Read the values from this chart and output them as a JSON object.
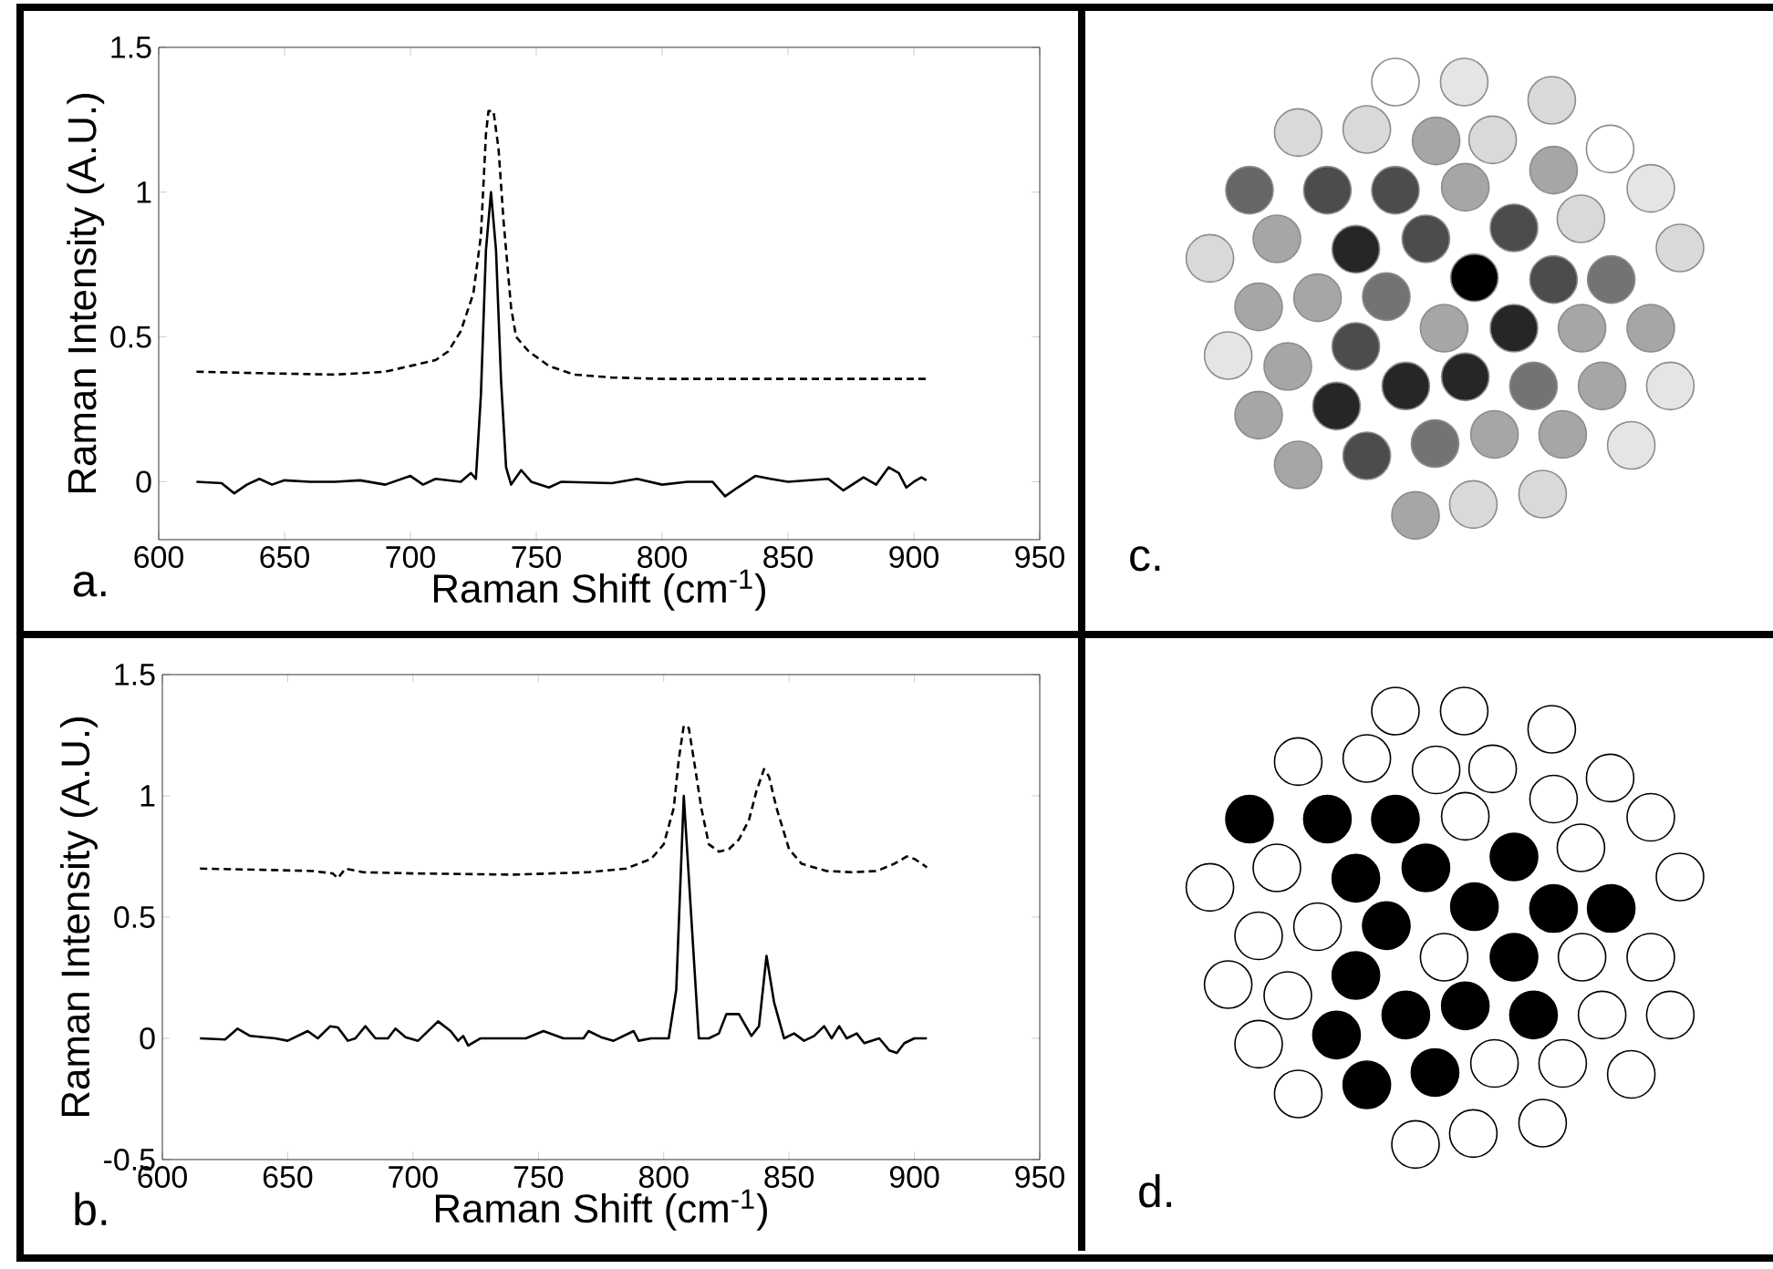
{
  "chart_data": [
    {
      "type": "line",
      "xlabel": "Raman Shift (cm$^{-1}$)",
      "ylabel": "Raman Intensity (A.U.)",
      "annotations": [
        "a."
      ],
      "xlim": [
        600,
        950
      ],
      "xticks": [
        600,
        650,
        700,
        750,
        800,
        850,
        900,
        950
      ],
      "ylim": [
        -0.2,
        1.5
      ],
      "yticks": [
        0,
        0.5,
        1,
        1.5
      ],
      "series": [
        {
          "color": "#000000",
          "line_style": "dashed",
          "x": [
            615,
            640,
            670,
            690,
            700,
            710,
            715,
            720,
            725,
            728,
            730,
            731,
            733,
            735,
            737,
            740,
            742,
            747,
            755,
            765,
            780,
            800,
            850,
            905
          ],
          "values": [
            0.38,
            0.375,
            0.37,
            0.38,
            0.4,
            0.42,
            0.45,
            0.52,
            0.65,
            0.85,
            1.2,
            1.28,
            1.28,
            1.15,
            0.9,
            0.6,
            0.5,
            0.45,
            0.4,
            0.37,
            0.36,
            0.355,
            0.355,
            0.355
          ]
        },
        {
          "color": "#000000",
          "line_style": "solid",
          "x": [
            615,
            625,
            630,
            635,
            640,
            645,
            650,
            660,
            670,
            680,
            690,
            700,
            705,
            710,
            720,
            724,
            726,
            728,
            730,
            732,
            734,
            736,
            738,
            740,
            744,
            748,
            755,
            760,
            780,
            790,
            800,
            810,
            820,
            825,
            830,
            837,
            843,
            850,
            866,
            872,
            880,
            885,
            890,
            894,
            897,
            900,
            903,
            905
          ],
          "values": [
            0,
            -0.005,
            -0.04,
            -0.01,
            0.01,
            -0.01,
            0.005,
            0,
            0,
            0.005,
            -0.01,
            0.02,
            -0.01,
            0.01,
            0,
            0.03,
            0.01,
            0.3,
            0.8,
            1.0,
            0.8,
            0.35,
            0.05,
            -0.01,
            0.04,
            0,
            -0.02,
            0,
            -0.005,
            0.01,
            -0.01,
            0,
            0,
            -0.05,
            -0.02,
            0.02,
            0.01,
            0,
            0.01,
            -0.03,
            0.015,
            -0.01,
            0.05,
            0.03,
            -0.02,
            0,
            0.015,
            0.005
          ]
        }
      ]
    },
    {
      "type": "other",
      "annotations": [
        "c."
      ]
    },
    {
      "type": "line",
      "xlabel": "Raman Shift (cm$^{-1}$)",
      "ylabel": "Raman Intensity (A.U.)",
      "annotations": [
        "b."
      ],
      "xlim": [
        600,
        950
      ],
      "xticks": [
        600,
        650,
        700,
        750,
        800,
        850,
        900,
        950
      ],
      "ylim": [
        -0.5,
        1.5
      ],
      "yticks": [
        -0.5,
        0,
        0.5,
        1,
        1.5
      ],
      "series": [
        {
          "color": "#000000",
          "line_style": "dashed",
          "x": [
            615,
            640,
            660,
            668,
            670,
            673,
            680,
            700,
            740,
            770,
            785,
            795,
            800,
            804,
            806,
            808,
            810,
            812,
            815,
            818,
            822,
            826,
            830,
            834,
            837,
            840,
            842,
            845,
            850,
            855,
            865,
            875,
            885,
            892,
            897,
            900,
            903,
            905
          ],
          "values": [
            0.7,
            0.695,
            0.69,
            0.68,
            0.66,
            0.7,
            0.685,
            0.68,
            0.675,
            0.685,
            0.7,
            0.74,
            0.8,
            0.95,
            1.15,
            1.29,
            1.28,
            1.15,
            0.95,
            0.8,
            0.77,
            0.78,
            0.82,
            0.9,
            1.02,
            1.11,
            1.08,
            0.95,
            0.78,
            0.72,
            0.69,
            0.685,
            0.69,
            0.72,
            0.75,
            0.74,
            0.72,
            0.705
          ]
        },
        {
          "color": "#000000",
          "line_style": "solid",
          "x": [
            615,
            625,
            630,
            635,
            645,
            650,
            658,
            662,
            667,
            670,
            674,
            677,
            681,
            685,
            690,
            693,
            697,
            702,
            710,
            715,
            718,
            720,
            722,
            727,
            745,
            752,
            760,
            768,
            770,
            775,
            780,
            788,
            790,
            795,
            802,
            805,
            808,
            811,
            814,
            818,
            822,
            825,
            830,
            835,
            838,
            841,
            844,
            848,
            852,
            856,
            860,
            864,
            867,
            870,
            873,
            877,
            880,
            886,
            890,
            893,
            896,
            900,
            905
          ],
          "values": [
            0,
            -0.005,
            0.04,
            0.01,
            0,
            -0.01,
            0.03,
            0,
            0.05,
            0.045,
            -0.01,
            0,
            0.05,
            0,
            0,
            0.04,
            0.005,
            -0.01,
            0.07,
            0.03,
            -0.01,
            0.01,
            -0.03,
            0,
            0,
            0.03,
            0,
            0,
            0.03,
            0.005,
            -0.01,
            0.03,
            -0.01,
            0,
            0,
            0.2,
            1.0,
            0.5,
            0,
            0,
            0.02,
            0.1,
            0.1,
            0.01,
            0.05,
            0.34,
            0.15,
            0,
            0.02,
            -0.01,
            0.01,
            0.05,
            0,
            0.05,
            0,
            0.02,
            -0.02,
            0,
            -0.05,
            -0.06,
            -0.02,
            0,
            0
          ]
        }
      ]
    },
    {
      "type": "other",
      "annotations": [
        "d."
      ]
    }
  ]
}
